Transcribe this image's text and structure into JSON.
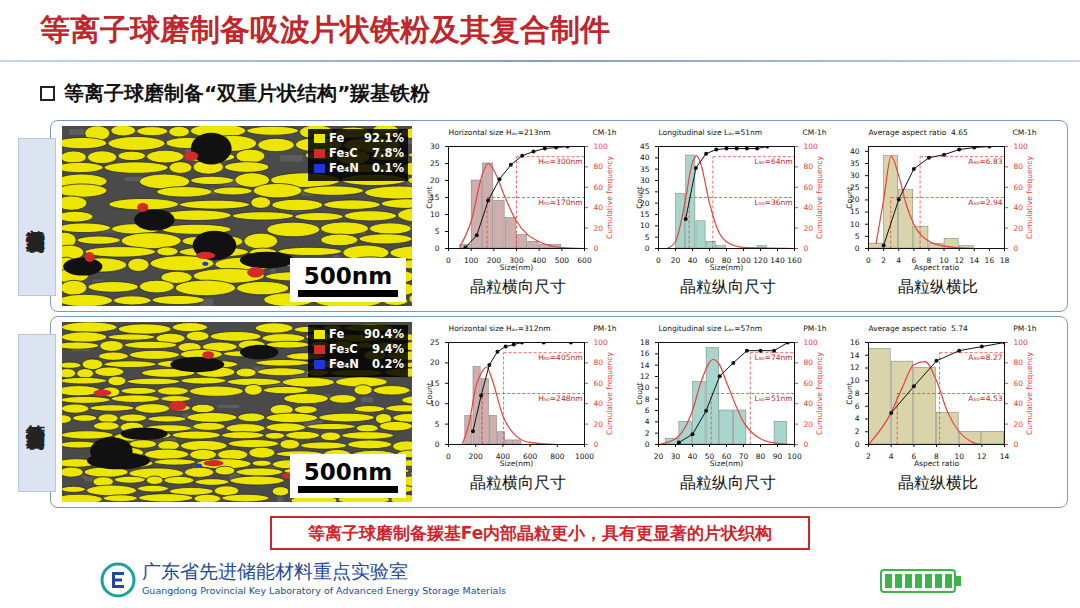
{
  "slide": {
    "title": "等离子球磨制备吸波片状铁粉及其复合制件",
    "subtitle": "等离子球磨制备“双重片状结构”羰基铁粉",
    "conclusion": "等离子球磨制备羰基Fe内部晶粒更小，具有更显著的片状织构",
    "footer": {
      "name_cn": "广东省先进储能材料重点实验室",
      "name_en": "Guangdong Provincial Key Laboratory of Advanced Energy Storage Materials"
    }
  },
  "panels": [
    {
      "label": "普通球磨制备",
      "micrograph": {
        "scale_bar": "500nm",
        "phases": [
          {
            "name": "Fe",
            "value": "92.1%",
            "color": "#ece600"
          },
          {
            "name": "Fe₃C",
            "value": "7.8%",
            "color": "#d42a2a"
          },
          {
            "name": "Fe₄N",
            "value": "0.1%",
            "color": "#2236d8"
          }
        ]
      },
      "captions": [
        "晶粒横向尺寸",
        "晶粒纵向尺寸",
        "晶粒纵横比"
      ]
    },
    {
      "label": "等离子球磨制备",
      "micrograph": {
        "scale_bar": "500nm",
        "phases": [
          {
            "name": "Fe",
            "value": "90.4%",
            "color": "#ece600"
          },
          {
            "name": "Fe₃C",
            "value": "9.4%",
            "color": "#d42a2a"
          },
          {
            "name": "Fe₄N",
            "value": "0.2%",
            "color": "#2236d8"
          }
        ]
      },
      "captions": [
        "晶粒横向尺寸",
        "晶粒纵向尺寸",
        "晶粒纵横比"
      ]
    }
  ],
  "chart_data": [
    {
      "type": "histogram",
      "title": "Horizontal size Hₐᵥ=213nm",
      "label": "CM-1h",
      "x_label": "Size(nm)",
      "y_label": "Count",
      "y2_label": "Cumulative frequency",
      "bins": [
        50,
        100,
        150,
        200,
        250,
        300,
        350,
        400,
        450,
        500
      ],
      "values": [
        1,
        20,
        25,
        14,
        9,
        4,
        2,
        1,
        1
      ],
      "color": "#cfaeae",
      "xlim": [
        0,
        600
      ],
      "xticks": [
        0,
        100,
        200,
        300,
        400,
        500,
        600
      ],
      "ylim": [
        0,
        30
      ],
      "yticks": [
        0,
        5,
        10,
        15,
        20,
        25,
        30
      ],
      "y2lim": [
        0,
        100
      ],
      "y2ticks": [
        0,
        20,
        40,
        60,
        80,
        100
      ],
      "fit": {
        "type": "line",
        "color": "#e8413a",
        "x": [
          50,
          100,
          150,
          175,
          200,
          250,
          300,
          350,
          400,
          500,
          600
        ],
        "values": [
          0.5,
          8,
          22,
          25,
          23,
          15,
          8,
          4,
          2,
          0.3,
          0
        ]
      },
      "cumulative": {
        "type": "line",
        "axis": "y2",
        "marker": "circle",
        "color": "#111111",
        "x": [
          75,
          125,
          175,
          225,
          275,
          325,
          375,
          425,
          475,
          525
        ],
        "values": [
          1,
          13,
          47,
          68,
          82,
          91,
          95,
          98,
          99,
          100
        ]
      },
      "markers": [
        {
          "x": 170,
          "y2": 50,
          "label": "H₅₀=170nm"
        },
        {
          "x": 300,
          "y2": 90,
          "label": "H₉₀=300nm"
        }
      ]
    },
    {
      "type": "histogram",
      "title": "Longitudinal size Lₐᵥ=51nm",
      "label": "CM-1h",
      "x_label": "Size(nm)",
      "y_label": "Count",
      "y2_label": "Cumulative frequency",
      "bins": [
        20,
        32,
        44,
        56,
        68,
        80,
        92,
        104,
        116,
        128
      ],
      "values": [
        24,
        41,
        12,
        3,
        1,
        0,
        0,
        0,
        1
      ],
      "color": "#a9d6cc",
      "xlim": [
        0,
        160
      ],
      "xticks": [
        0,
        20,
        40,
        60,
        80,
        100,
        120,
        140,
        160
      ],
      "ylim": [
        0,
        45
      ],
      "yticks": [
        0,
        5,
        10,
        15,
        20,
        25,
        30,
        35,
        40,
        45
      ],
      "y2lim": [
        0,
        100
      ],
      "y2ticks": [
        0,
        20,
        40,
        60,
        80,
        100
      ],
      "fit": {
        "type": "line",
        "color": "#e8413a",
        "x": [
          10,
          20,
          30,
          40,
          45,
          50,
          60,
          70,
          80,
          100,
          160
        ],
        "values": [
          0,
          3,
          18,
          38,
          41,
          37,
          20,
          8,
          3,
          0.5,
          0
        ]
      },
      "cumulative": {
        "type": "line",
        "axis": "y2",
        "marker": "circle",
        "color": "#111111",
        "x": [
          32,
          44,
          56,
          68,
          80,
          92,
          104,
          116,
          128
        ],
        "values": [
          29,
          79,
          93,
          97,
          98,
          98,
          98,
          98,
          100
        ]
      },
      "markers": [
        {
          "x": 36,
          "y2": 50,
          "label": "L₅₀=36nm"
        },
        {
          "x": 64,
          "y2": 90,
          "label": "L₉₀=64nm"
        }
      ]
    },
    {
      "type": "histogram",
      "title": "Average aspect ratio  4.65",
      "label": "CM-1h",
      "x_label": "Aspect ratio",
      "y_label": "Count",
      "y2_label": "Cumulative frequency",
      "bins": [
        0,
        2,
        4,
        6,
        8,
        10,
        12,
        14,
        16
      ],
      "values": [
        2,
        38,
        24,
        9,
        2,
        4,
        1,
        0
      ],
      "color": "#d9d4aa",
      "xlim": [
        0,
        18
      ],
      "xticks": [
        0,
        2,
        4,
        6,
        8,
        10,
        12,
        14,
        16,
        18
      ],
      "ylim": [
        0,
        42
      ],
      "yticks": [
        0,
        5,
        10,
        15,
        20,
        25,
        30,
        35,
        40
      ],
      "y2lim": [
        0,
        100
      ],
      "y2ticks": [
        0,
        20,
        40,
        60,
        80,
        100
      ],
      "fit": {
        "type": "line",
        "color": "#e8413a",
        "x": [
          1,
          2,
          3,
          4,
          5,
          6,
          8,
          10,
          14,
          18
        ],
        "values": [
          2,
          20,
          38,
          30,
          18,
          10,
          3,
          1,
          0,
          0
        ]
      },
      "cumulative": {
        "type": "line",
        "axis": "y2",
        "marker": "circle",
        "color": "#111111",
        "x": [
          2,
          4,
          6,
          8,
          10,
          12,
          14,
          16
        ],
        "values": [
          3,
          48,
          78,
          89,
          92,
          97,
          99,
          100
        ]
      },
      "markers": [
        {
          "x": 2.94,
          "y2": 50,
          "label": "A₅₀=2.94"
        },
        {
          "x": 6.83,
          "y2": 90,
          "label": "A₉₀=6.83"
        }
      ]
    },
    {
      "type": "histogram",
      "title": "Horizontal size Hₐᵥ=312nm",
      "label": "PM-1h",
      "x_label": "Size(nm)",
      "y_label": "Count",
      "y2_label": "Cumulative frequency",
      "bins": [
        120,
        180,
        240,
        300,
        360,
        420,
        480,
        540,
        600
      ],
      "values": [
        7,
        19,
        16,
        7,
        3,
        1,
        1,
        0
      ],
      "color": "#cfaeae",
      "xlim": [
        0,
        1000
      ],
      "xticks": [
        0,
        200,
        400,
        600,
        800,
        1000
      ],
      "ylim": [
        0,
        25
      ],
      "yticks": [
        0,
        5,
        10,
        15,
        20,
        25
      ],
      "y2lim": [
        0,
        100
      ],
      "y2ticks": [
        0,
        20,
        40,
        60,
        80,
        100
      ],
      "fit": {
        "type": "line",
        "color": "#e8413a",
        "x": [
          100,
          150,
          200,
          250,
          280,
          320,
          400,
          500,
          600,
          800,
          1000
        ],
        "values": [
          0,
          5,
          14,
          18,
          19,
          16,
          7,
          2,
          0.5,
          0,
          0
        ]
      },
      "cumulative": {
        "type": "line",
        "axis": "y2",
        "marker": "circle",
        "color": "#111111",
        "x": [
          180,
          240,
          300,
          360,
          420,
          480,
          540,
          700,
          900
        ],
        "values": [
          13,
          48,
          78,
          91,
          96,
          98,
          100,
          100,
          100
        ]
      },
      "markers": [
        {
          "x": 248,
          "y2": 50,
          "label": "H₅₀=248nm"
        },
        {
          "x": 405,
          "y2": 90,
          "label": "H₉₀=405nm"
        }
      ]
    },
    {
      "type": "histogram",
      "title": "Longitudinal size Lₐᵥ=57nm",
      "label": "PM-1h",
      "x_label": "Size(nm)",
      "y_label": "Count",
      "y2_label": "Cumulative frequency",
      "bins": [
        24,
        32,
        40,
        48,
        56,
        64,
        72,
        80,
        88,
        96
      ],
      "values": [
        1,
        4,
        11,
        17,
        6,
        6,
        0,
        0,
        4
      ],
      "color": "#a9d6cc",
      "xlim": [
        20,
        100
      ],
      "xticks": [
        20,
        30,
        40,
        50,
        60,
        70,
        80,
        90,
        100
      ],
      "ylim": [
        0,
        18
      ],
      "yticks": [
        0,
        2,
        4,
        6,
        8,
        10,
        12,
        14,
        16,
        18
      ],
      "y2lim": [
        0,
        100
      ],
      "y2ticks": [
        0,
        20,
        40,
        60,
        80,
        100
      ],
      "fit": {
        "type": "line",
        "color": "#e8413a",
        "x": [
          20,
          30,
          40,
          45,
          52,
          56,
          60,
          70,
          80,
          90,
          100
        ],
        "values": [
          0,
          1,
          6,
          11,
          15,
          14,
          11,
          4,
          1,
          0.2,
          0
        ]
      },
      "cumulative": {
        "type": "line",
        "axis": "y2",
        "marker": "circle",
        "color": "#111111",
        "x": [
          32,
          40,
          48,
          56,
          64,
          72,
          80,
          88,
          96
        ],
        "values": [
          2,
          10,
          33,
          67,
          80,
          92,
          92,
          92,
          100
        ]
      },
      "markers": [
        {
          "x": 51,
          "y2": 50,
          "label": "L₅₀=51nm"
        },
        {
          "x": 74,
          "y2": 90,
          "label": "L₉₀=74nm"
        }
      ]
    },
    {
      "type": "histogram",
      "title": "Average aspect ratio  5.74",
      "label": "PM-1h",
      "x_label": "Aspect ratio",
      "y_label": "Count",
      "y2_label": "Cumulative frequency",
      "bins": [
        2,
        4,
        6,
        8,
        10,
        12,
        14
      ],
      "values": [
        15,
        13,
        12,
        5,
        2,
        2
      ],
      "color": "#d9d4aa",
      "xlim": [
        2,
        14
      ],
      "xticks": [
        2,
        4,
        6,
        8,
        10,
        12,
        14
      ],
      "ylim": [
        0,
        16
      ],
      "yticks": [
        0,
        2,
        4,
        6,
        8,
        10,
        12,
        14,
        16
      ],
      "y2lim": [
        0,
        100
      ],
      "y2ticks": [
        0,
        20,
        40,
        60,
        80,
        100
      ],
      "fit": {
        "type": "line",
        "color": "#e8413a",
        "x": [
          2,
          4,
          5,
          6,
          7,
          8,
          9,
          10,
          11,
          12,
          14
        ],
        "values": [
          0,
          5,
          9,
          12.5,
          13,
          10,
          5,
          2,
          0.5,
          0,
          0
        ]
      },
      "cumulative": {
        "type": "line",
        "axis": "y2",
        "marker": "circle",
        "color": "#111111",
        "x": [
          4,
          6,
          8,
          10,
          12,
          14
        ],
        "values": [
          31,
          57,
          82,
          92,
          96,
          100
        ]
      },
      "markers": [
        {
          "x": 4.53,
          "y2": 50,
          "label": "A₅₀=4.53"
        },
        {
          "x": 8.27,
          "y2": 90,
          "label": "A₉₀=8.27"
        }
      ]
    }
  ]
}
